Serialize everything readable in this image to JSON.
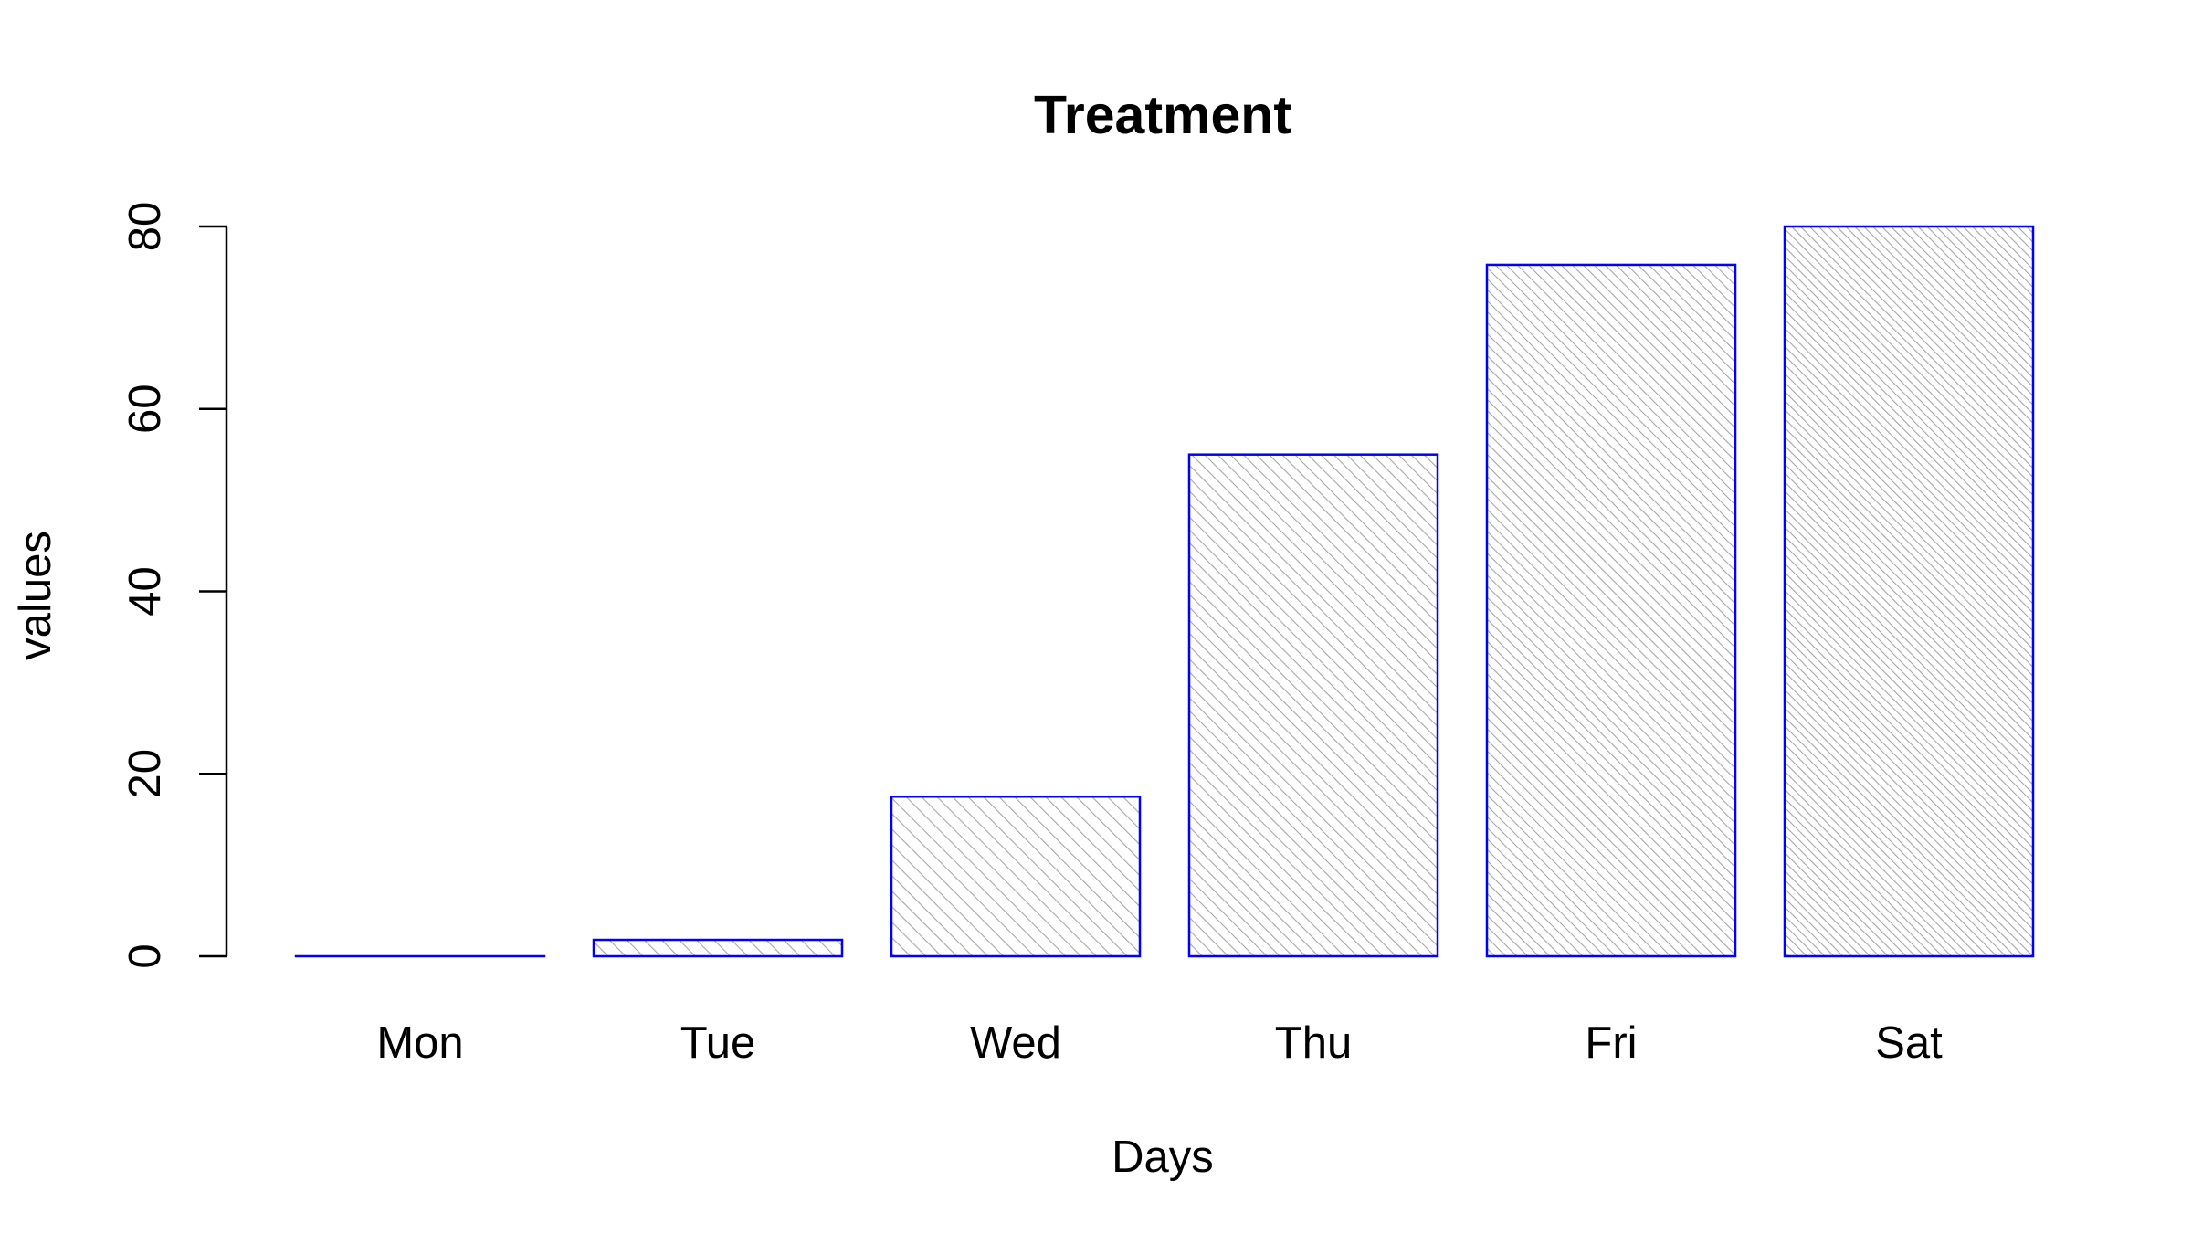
{
  "chart_data": {
    "type": "bar",
    "title": "Treatment",
    "xlabel": "Days",
    "ylabel": "values",
    "categories": [
      "Mon",
      "Tue",
      "Wed",
      "Thu",
      "Fri",
      "Sat"
    ],
    "values": [
      0,
      1.8,
      17.5,
      55,
      75.8,
      80
    ],
    "ylim": [
      0,
      80
    ],
    "yticks": [
      0,
      20,
      40,
      60,
      80
    ],
    "ytick_labels": [
      "0",
      "20",
      "40",
      "60",
      "80"
    ],
    "grid": false,
    "legend": "none",
    "bar_border_color": "#0000ff",
    "hatch_color": "#a6a6a6"
  }
}
